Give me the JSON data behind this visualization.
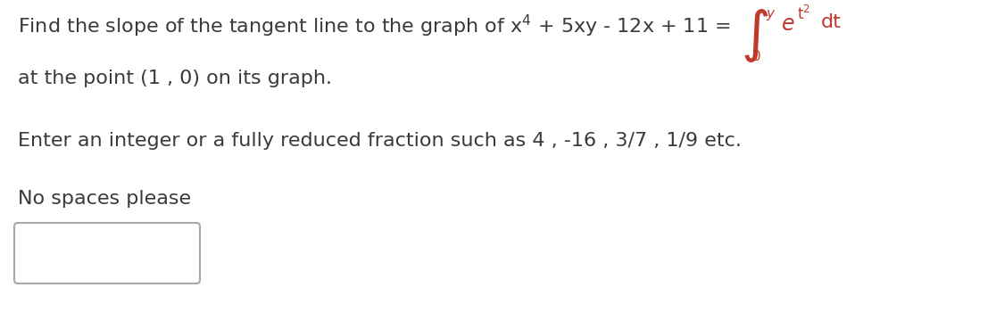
{
  "background_color": "#ffffff",
  "text_color": "#3a3a3a",
  "integral_color": "#c0392b",
  "box_edge_color": "#aaaaaa",
  "font_size_main": 16,
  "font_size_sup_small": 10,
  "font_size_integral": 28,
  "font_size_sup_int": 11,
  "line2": "at the point (1 , 0) on its graph.",
  "line3": "Enter an integer or a fully reduced fraction such as 4 , -16 , 3/7 , 1/9 etc.",
  "line4": "No spaces please"
}
